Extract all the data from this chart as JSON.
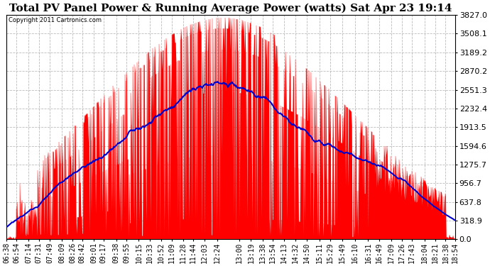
{
  "title": "Total PV Panel Power & Running Average Power (watts) Sat Apr 23 19:14",
  "copyright": "Copyright 2011 Cartronics.com",
  "ymax": 3827.0,
  "yticks": [
    0.0,
    318.9,
    637.8,
    956.7,
    1275.7,
    1594.6,
    1913.5,
    2232.4,
    2551.3,
    2870.2,
    3189.2,
    3508.1,
    3827.0
  ],
  "bar_color": "#ff0000",
  "avg_color": "#0000cc",
  "bg_color": "#ffffff",
  "grid_color": "#aaaaaa",
  "title_fontsize": 11,
  "tick_fontsize": 7,
  "copyright_fontsize": 6
}
